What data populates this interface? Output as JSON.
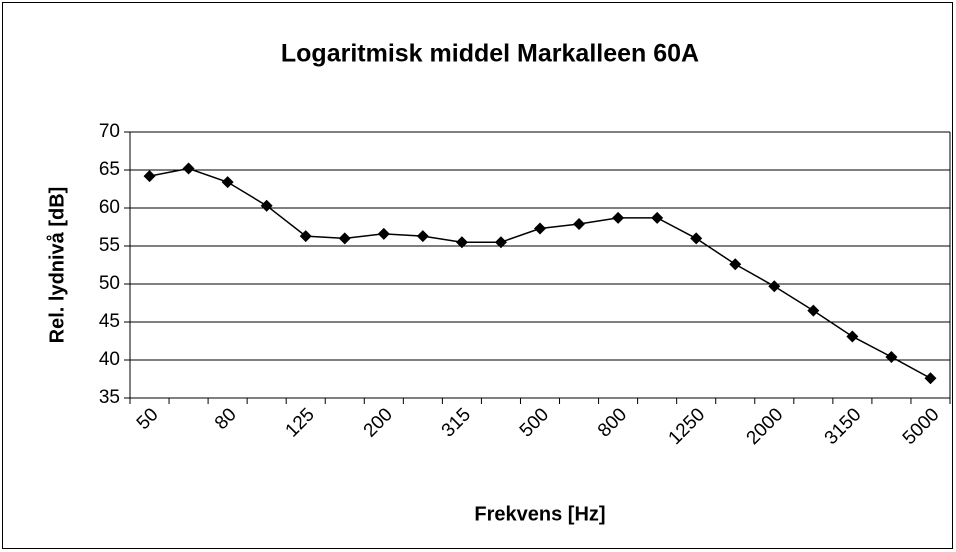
{
  "chart_data": {
    "type": "line",
    "title": "Logaritmisk middel Markalleen 60A",
    "x_label": "Frekvens [Hz]",
    "y_label": "Rel. lydnivå [dB]",
    "categories": [
      "50",
      null,
      "80",
      null,
      "125",
      null,
      "200",
      null,
      "315",
      null,
      "500",
      null,
      "800",
      null,
      "1250",
      null,
      "2000",
      null,
      "3150",
      null,
      "5000"
    ],
    "values": [
      64.2,
      65.2,
      63.4,
      60.3,
      56.3,
      56.0,
      56.6,
      56.3,
      55.5,
      55.5,
      57.3,
      57.9,
      58.7,
      58.7,
      56.0,
      52.6,
      49.7,
      46.5,
      43.1,
      40.4,
      37.6
    ],
    "color": "#000000",
    "ylim": [
      35,
      70
    ],
    "yticks": [
      35,
      40,
      45,
      50,
      55,
      60,
      65,
      70
    ],
    "grid": true
  }
}
